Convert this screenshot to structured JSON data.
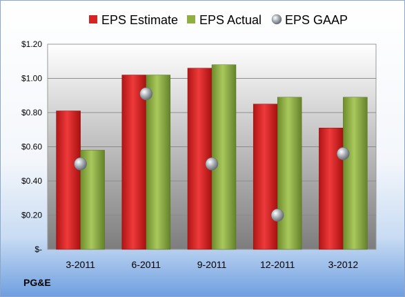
{
  "chart_data": {
    "type": "bar",
    "categories": [
      "3-2011",
      "6-2011",
      "9-2011",
      "12-2011",
      "3-2012"
    ],
    "series": [
      {
        "name": "EPS Estimate",
        "kind": "bar",
        "color": "#d42424",
        "values": [
          0.81,
          1.02,
          1.06,
          0.85,
          0.71
        ]
      },
      {
        "name": "EPS Actual",
        "kind": "bar",
        "color": "#8fb040",
        "values": [
          0.58,
          1.02,
          1.08,
          0.89,
          0.89
        ]
      },
      {
        "name": "EPS GAAP",
        "kind": "scatter",
        "color": "#9aa0a6",
        "values": [
          0.5,
          0.91,
          0.5,
          0.2,
          0.56
        ]
      }
    ],
    "ylim": [
      0,
      1.2
    ],
    "y_ticks": [
      0,
      0.2,
      0.4,
      0.6,
      0.8,
      1.0,
      1.2
    ],
    "y_tick_labels": [
      "$-",
      "$0.20",
      "$0.40",
      "$0.60",
      "$0.80",
      "$1.00",
      "$1.20"
    ],
    "grid": true,
    "legend_position": "top"
  },
  "brand_label": "PG&E"
}
